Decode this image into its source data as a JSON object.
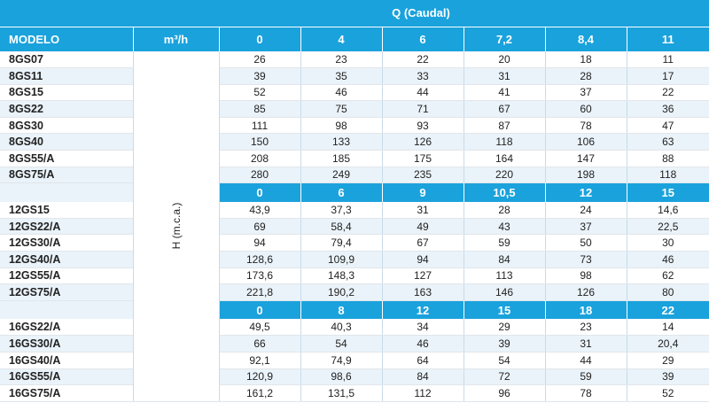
{
  "header": {
    "q_label": "Q (Caudal)",
    "model_label": "MODELO",
    "unit_label": "m³/h",
    "h_label": "H (m.c.a.)"
  },
  "groups": [
    {
      "flows": [
        "0",
        "4",
        "6",
        "7,2",
        "8,4",
        "11"
      ],
      "rows": [
        {
          "model": "8GS07",
          "values": [
            "26",
            "23",
            "22",
            "20",
            "18",
            "11"
          ]
        },
        {
          "model": "8GS11",
          "values": [
            "39",
            "35",
            "33",
            "31",
            "28",
            "17"
          ]
        },
        {
          "model": "8GS15",
          "values": [
            "52",
            "46",
            "44",
            "41",
            "37",
            "22"
          ]
        },
        {
          "model": "8GS22",
          "values": [
            "85",
            "75",
            "71",
            "67",
            "60",
            "36"
          ]
        },
        {
          "model": "8GS30",
          "values": [
            "111",
            "98",
            "93",
            "87",
            "78",
            "47"
          ]
        },
        {
          "model": "8GS40",
          "values": [
            "150",
            "133",
            "126",
            "118",
            "106",
            "63"
          ]
        },
        {
          "model": "8GS55/A",
          "values": [
            "208",
            "185",
            "175",
            "164",
            "147",
            "88"
          ]
        },
        {
          "model": "8GS75/A",
          "values": [
            "280",
            "249",
            "235",
            "220",
            "198",
            "118"
          ]
        }
      ]
    },
    {
      "flows": [
        "0",
        "6",
        "9",
        "10,5",
        "12",
        "15"
      ],
      "rows": [
        {
          "model": "12GS15",
          "values": [
            "43,9",
            "37,3",
            "31",
            "28",
            "24",
            "14,6"
          ]
        },
        {
          "model": "12GS22/A",
          "values": [
            "69",
            "58,4",
            "49",
            "43",
            "37",
            "22,5"
          ]
        },
        {
          "model": "12GS30/A",
          "values": [
            "94",
            "79,4",
            "67",
            "59",
            "50",
            "30"
          ]
        },
        {
          "model": "12GS40/A",
          "values": [
            "128,6",
            "109,9",
            "94",
            "84",
            "73",
            "46"
          ]
        },
        {
          "model": "12GS55/A",
          "values": [
            "173,6",
            "148,3",
            "127",
            "113",
            "98",
            "62"
          ]
        },
        {
          "model": "12GS75/A",
          "values": [
            "221,8",
            "190,2",
            "163",
            "146",
            "126",
            "80"
          ]
        }
      ]
    },
    {
      "flows": [
        "0",
        "8",
        "12",
        "15",
        "18",
        "22"
      ],
      "rows": [
        {
          "model": "16GS22/A",
          "values": [
            "49,5",
            "40,3",
            "34",
            "29",
            "23",
            "14"
          ]
        },
        {
          "model": "16GS30/A",
          "values": [
            "66",
            "54",
            "46",
            "39",
            "31",
            "20,4"
          ]
        },
        {
          "model": "16GS40/A",
          "values": [
            "92,1",
            "74,9",
            "64",
            "54",
            "44",
            "29"
          ]
        },
        {
          "model": "16GS55/A",
          "values": [
            "120,9",
            "98,6",
            "84",
            "72",
            "59",
            "39"
          ]
        },
        {
          "model": "16GS75/A",
          "values": [
            "161,2",
            "131,5",
            "112",
            "96",
            "78",
            "52"
          ]
        }
      ]
    }
  ]
}
